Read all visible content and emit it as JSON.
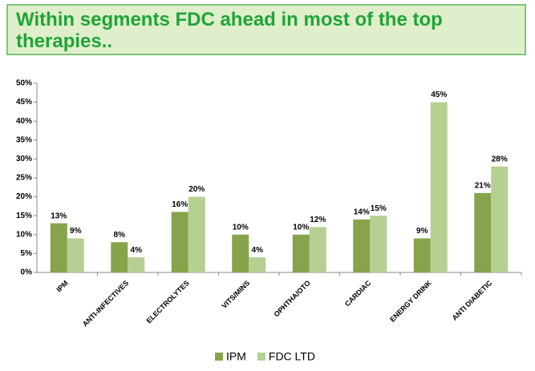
{
  "chart_data": {
    "type": "bar",
    "title": "Within segments FDC ahead in most of the top therapies..",
    "categories": [
      "IPM",
      "ANTI-INFECTIVES",
      "ELECTROLYTES",
      "VITS/MINS",
      "OPHTHA/OTO",
      "CARDIAC",
      "ENERGY DRINK",
      "ANTI DIABETIC"
    ],
    "series": [
      {
        "name": "IPM",
        "color": "#87a34b",
        "values": [
          13,
          8,
          16,
          10,
          10,
          14,
          9,
          21
        ],
        "value_labels": [
          "13%",
          "8%",
          "16%",
          "10%",
          "10%",
          "14%",
          "9%",
          "21%"
        ]
      },
      {
        "name": "FDC LTD",
        "color": "#b6cf92",
        "values": [
          9,
          4,
          20,
          4,
          12,
          15,
          45,
          28
        ],
        "value_labels": [
          "9%",
          "4%",
          "20%",
          "4%",
          "12%",
          "15%",
          "45%",
          "28%"
        ]
      }
    ],
    "ylim": [
      0,
      50
    ],
    "yticks": [
      {
        "value": 0,
        "label": "0%"
      },
      {
        "value": 5,
        "label": "5%"
      },
      {
        "value": 10,
        "label": "10%"
      },
      {
        "value": 15,
        "label": "15%"
      },
      {
        "value": 20,
        "label": "20%"
      },
      {
        "value": 25,
        "label": "25%"
      },
      {
        "value": 30,
        "label": "30%"
      },
      {
        "value": 35,
        "label": "35%"
      },
      {
        "value": 40,
        "label": "40%"
      },
      {
        "value": 45,
        "label": "45%"
      },
      {
        "value": 50,
        "label": "50%"
      }
    ],
    "grid": false,
    "legend": "bottom"
  }
}
